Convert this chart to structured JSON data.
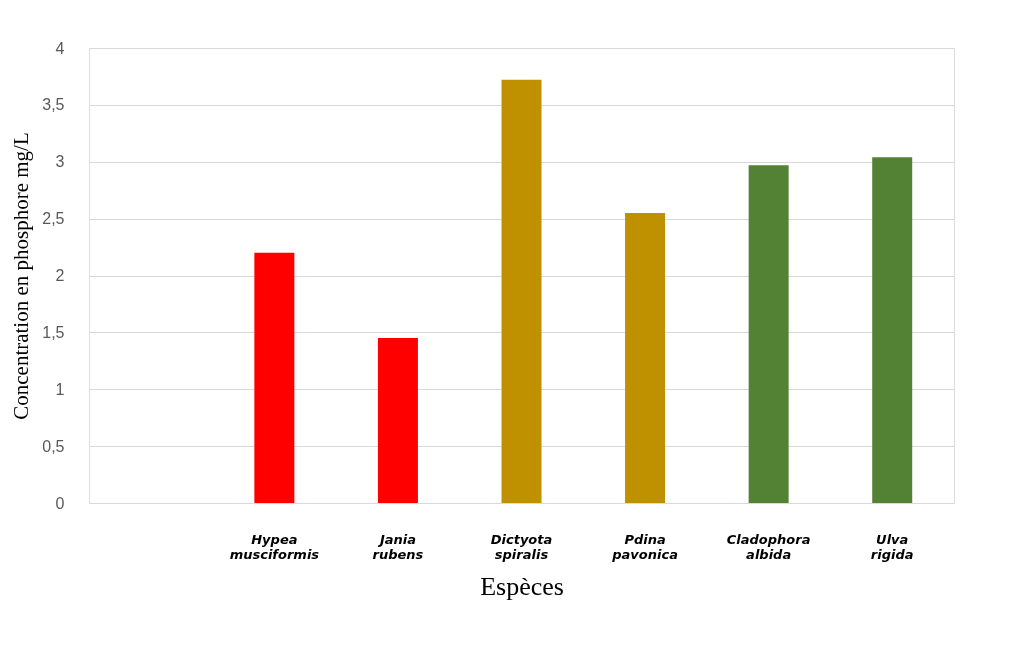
{
  "chart_data": {
    "type": "bar",
    "xlabel": "Espèces",
    "ylabel": "Concentration en phosphore mg/L",
    "categories": [
      null,
      "Hypea musciformis",
      "Jania rubens",
      "Dictyota spiralis",
      "Pdina pavonica",
      "Cladophora albida",
      "Ulva rigida"
    ],
    "values": [
      null,
      2.2,
      1.45,
      3.72,
      2.55,
      2.97,
      3.04
    ],
    "colors": [
      null,
      "#ff0000",
      "#ff0000",
      "#bf9000",
      "#bf9000",
      "#548235",
      "#548235"
    ],
    "ylim": [
      0,
      4
    ],
    "yticks": [
      0,
      {
        "value": 0.5,
        "label": "0,5"
      },
      1,
      {
        "value": 1.5,
        "label": "1,5"
      },
      2,
      {
        "value": 2.5,
        "label": "2,5"
      },
      3,
      {
        "value": 3.5,
        "label": "3,5"
      },
      4
    ],
    "grid": "y"
  }
}
